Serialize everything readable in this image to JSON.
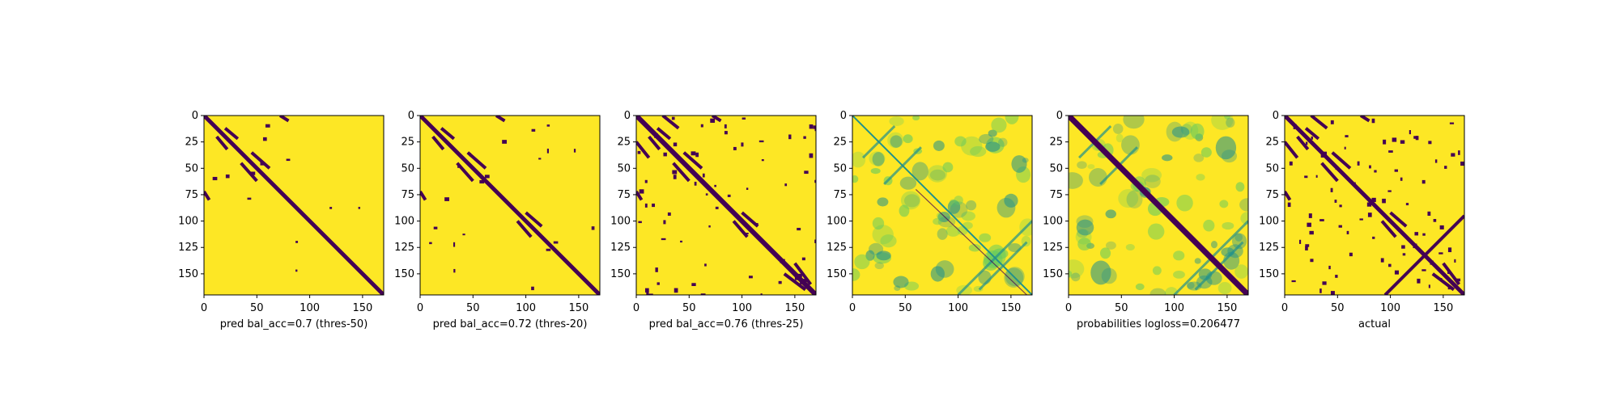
{
  "figure": {
    "colors": {
      "low": "#440154",
      "high": "#fde725",
      "mid1": "#21918c",
      "mid2": "#5ec962",
      "frame": "#000000"
    }
  },
  "chart_data": [
    {
      "type": "heatmap",
      "variant": "binary",
      "xlabel": "pred bal_acc=0.7 (thres-50)",
      "xticks": [
        0,
        50,
        100,
        150
      ],
      "yticks": [
        0,
        25,
        50,
        75,
        100,
        125,
        150
      ],
      "xlim": [
        0,
        170
      ],
      "ylim": [
        170,
        0
      ],
      "colormap": "viridis",
      "summary": "mostly high values (yellow) with low-value (purple) diagonal band and a few off-diagonal contact streaks"
    },
    {
      "type": "heatmap",
      "variant": "binary",
      "xlabel": "pred bal_acc=0.72 (thres-20)",
      "xticks": [
        0,
        50,
        100,
        150
      ],
      "yticks": [
        0,
        25,
        50,
        75,
        100,
        125,
        150
      ],
      "xlim": [
        0,
        170
      ],
      "ylim": [
        170,
        0
      ],
      "colormap": "viridis",
      "summary": "diagonal band plus more off-diagonal streaks than the thres-50 panel"
    },
    {
      "type": "heatmap",
      "variant": "binary",
      "xlabel": "pred bal_acc=0.76 (thres-25)",
      "xticks": [
        0,
        50,
        100,
        150
      ],
      "yticks": [
        0,
        25,
        50,
        75,
        100,
        125,
        150
      ],
      "xlim": [
        0,
        170
      ],
      "ylim": [
        170,
        0
      ],
      "colormap": "viridis",
      "summary": "thick diagonal band with many scattered contact clusters"
    },
    {
      "type": "heatmap",
      "variant": "continuous",
      "xlabel": "",
      "xticks": [
        0,
        50,
        100,
        150
      ],
      "yticks": [
        0,
        25,
        50,
        75,
        100,
        125,
        150
      ],
      "xlim": [
        0,
        170
      ],
      "ylim": [
        170,
        0
      ],
      "colormap": "viridis",
      "summary": "continuous values, yellow background with teal/green diffuse blobs and anti-diagonal streaks"
    },
    {
      "type": "heatmap",
      "variant": "continuous",
      "xlabel": "probabilities logloss=0.206477",
      "xticks": [
        0,
        50,
        100,
        150
      ],
      "yticks": [
        0,
        25,
        50,
        75,
        100,
        125,
        150
      ],
      "xlim": [
        0,
        170
      ],
      "ylim": [
        170,
        0
      ],
      "colormap": "viridis",
      "summary": "continuous probabilities with strong purple diagonal and teal off-diagonal blobs"
    },
    {
      "type": "heatmap",
      "variant": "binary",
      "xlabel": "actual",
      "xticks": [
        0,
        50,
        100,
        150
      ],
      "yticks": [
        0,
        25,
        50,
        75,
        100,
        125,
        150
      ],
      "xlim": [
        0,
        170
      ],
      "ylim": [
        170,
        0
      ],
      "colormap": "viridis",
      "summary": "ground-truth contacts: purple diagonal, crossing anti-diagonal streaks and scattered small clusters"
    }
  ]
}
